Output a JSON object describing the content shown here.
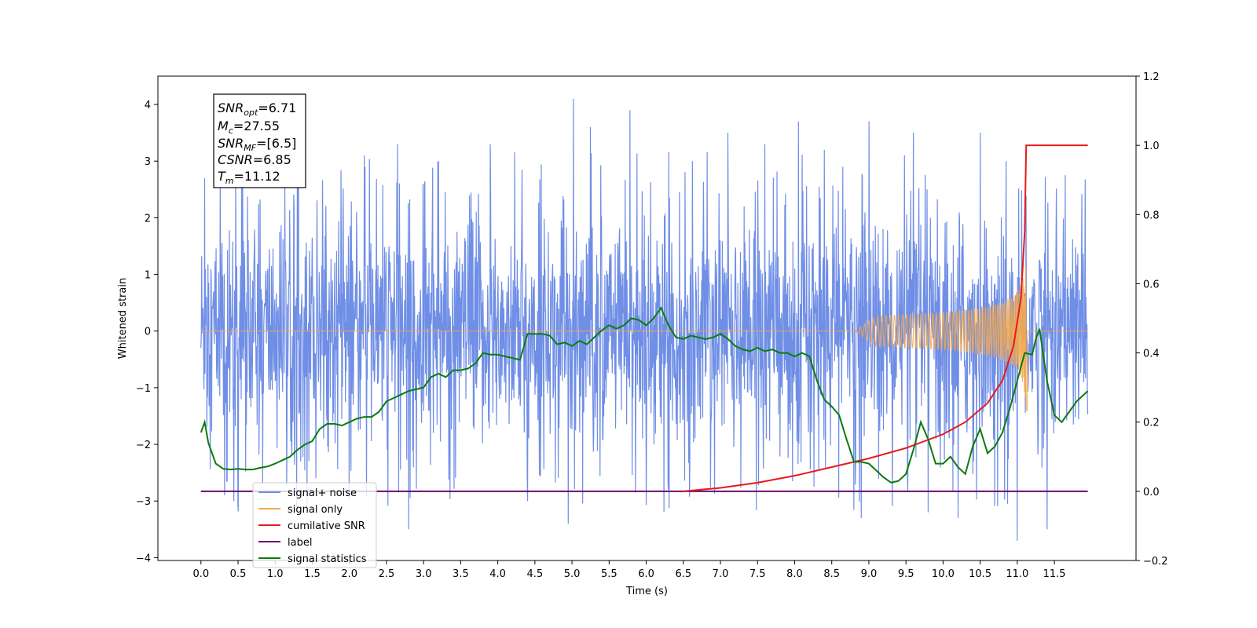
{
  "chart_data": {
    "type": "line",
    "xlabel": "Time (s)",
    "ylabel": "Whitened strain",
    "xlim": [
      -0.58,
      12.6
    ],
    "ylim": [
      -4.05,
      4.5
    ],
    "y2lim": [
      -0.2,
      1.2
    ],
    "grid": false,
    "legend_placement": "lower-left",
    "x_ticks": [
      "0.0",
      "0.5",
      "1.0",
      "1.5",
      "2.0",
      "2.5",
      "3.0",
      "3.5",
      "4.0",
      "4.5",
      "5.0",
      "5.5",
      "6.0",
      "6.5",
      "7.0",
      "7.5",
      "8.0",
      "8.5",
      "9.0",
      "9.5",
      "10.0",
      "10.5",
      "11.0",
      "11.5"
    ],
    "y_ticks": [
      "−4",
      "−3",
      "−2",
      "−1",
      "0",
      "1",
      "2",
      "3",
      "4"
    ],
    "y2_ticks": [
      "−0.2",
      "0.0",
      "0.2",
      "0.4",
      "0.6",
      "0.8",
      "1.0",
      "1.2"
    ],
    "annotation": {
      "lines": [
        {
          "sym": "SNR",
          "sub": "opt",
          "val": "=6.71"
        },
        {
          "sym": "M",
          "sub": "c",
          "val": "=27.55"
        },
        {
          "sym": "SNR",
          "sub": "MF",
          "val": "=[6.5]"
        },
        {
          "sym": "CSNR",
          "sub": "",
          "val": "=6.85"
        },
        {
          "sym": "T",
          "sub": "m",
          "val": "=11.12"
        }
      ]
    },
    "series": [
      {
        "name": "signal+ noise",
        "color": "#6f8ee6",
        "axis": "left",
        "description_values": "noise band roughly between -2.4 and 2.4 with spikes to about 4.1 and -3.7",
        "spike_x": [
          0.05,
          0.32,
          0.55,
          0.83,
          1.3,
          1.55,
          2.2,
          2.65,
          2.8,
          3.2,
          3.9,
          4.4,
          4.95,
          5.02,
          5.25,
          5.78,
          6.3,
          6.62,
          7.1,
          7.6,
          8.05,
          8.4,
          8.9,
          9.0,
          9.6,
          9.8,
          10.2,
          10.5,
          10.85,
          11.0,
          11.4
        ],
        "spike_y": [
          2.7,
          -2.9,
          2.8,
          -2.7,
          3.4,
          -2.6,
          3.1,
          3.3,
          -3.5,
          3.0,
          3.3,
          -3.0,
          -3.4,
          4.1,
          3.6,
          3.9,
          -2.8,
          3.0,
          3.5,
          3.3,
          3.7,
          3.2,
          -3.3,
          3.7,
          3.5,
          -3.2,
          -3.3,
          3.5,
          3.0,
          -3.7,
          -3.5
        ]
      },
      {
        "name": "signal only",
        "color": "#f5a94a",
        "axis": "left",
        "chirp_start": 8.8,
        "chirp_end": 11.12,
        "peak_amp": 1.4
      },
      {
        "name": "cumilative SNR",
        "color": "#e8191c",
        "axis": "right",
        "x": [
          6.5,
          7.0,
          7.5,
          8.0,
          8.5,
          9.0,
          9.5,
          10.0,
          10.3,
          10.6,
          10.8,
          10.95,
          11.05,
          11.1,
          11.12,
          11.15,
          11.95
        ],
        "y": [
          0.0,
          0.01,
          0.025,
          0.045,
          0.07,
          0.095,
          0.125,
          0.165,
          0.2,
          0.255,
          0.32,
          0.42,
          0.56,
          0.75,
          1.0,
          1.0,
          1.0
        ]
      },
      {
        "name": "label",
        "color": "#6a0d6a",
        "axis": "right",
        "x": [
          0.0,
          11.95
        ],
        "y": [
          0.0,
          0.0
        ]
      },
      {
        "name": "signal statistics",
        "color": "#0d7a0d",
        "axis": "right",
        "x": [
          0.0,
          0.05,
          0.1,
          0.2,
          0.3,
          0.4,
          0.5,
          0.6,
          0.7,
          0.8,
          0.9,
          1.0,
          1.1,
          1.2,
          1.3,
          1.4,
          1.5,
          1.6,
          1.7,
          1.8,
          1.9,
          2.0,
          2.1,
          2.2,
          2.3,
          2.4,
          2.5,
          2.6,
          2.7,
          2.8,
          2.9,
          3.0,
          3.1,
          3.2,
          3.3,
          3.4,
          3.5,
          3.6,
          3.7,
          3.8,
          3.9,
          4.0,
          4.1,
          4.2,
          4.3,
          4.4,
          4.5,
          4.6,
          4.7,
          4.8,
          4.9,
          5.0,
          5.1,
          5.2,
          5.3,
          5.4,
          5.5,
          5.6,
          5.7,
          5.8,
          5.9,
          6.0,
          6.1,
          6.2,
          6.3,
          6.4,
          6.5,
          6.6,
          6.7,
          6.8,
          6.9,
          7.0,
          7.1,
          7.2,
          7.3,
          7.4,
          7.5,
          7.6,
          7.7,
          7.8,
          7.9,
          8.0,
          8.1,
          8.2,
          8.3,
          8.4,
          8.5,
          8.6,
          8.7,
          8.8,
          8.9,
          9.0,
          9.1,
          9.2,
          9.3,
          9.4,
          9.5,
          9.6,
          9.7,
          9.8,
          9.9,
          10.0,
          10.1,
          10.2,
          10.3,
          10.4,
          10.5,
          10.6,
          10.7,
          10.8,
          10.9,
          11.0,
          11.1,
          11.2,
          11.25,
          11.3,
          11.4,
          11.5,
          11.6,
          11.7,
          11.8,
          11.9,
          11.95
        ],
        "y": [
          0.17,
          0.2,
          0.14,
          0.08,
          0.065,
          0.063,
          0.065,
          0.063,
          0.063,
          0.068,
          0.072,
          0.08,
          0.09,
          0.1,
          0.12,
          0.135,
          0.145,
          0.18,
          0.195,
          0.195,
          0.19,
          0.2,
          0.21,
          0.215,
          0.215,
          0.23,
          0.26,
          0.27,
          0.28,
          0.29,
          0.295,
          0.3,
          0.33,
          0.34,
          0.33,
          0.35,
          0.35,
          0.355,
          0.37,
          0.4,
          0.395,
          0.395,
          0.39,
          0.385,
          0.38,
          0.455,
          0.455,
          0.455,
          0.45,
          0.425,
          0.43,
          0.42,
          0.435,
          0.425,
          0.445,
          0.465,
          0.48,
          0.47,
          0.48,
          0.5,
          0.495,
          0.48,
          0.5,
          0.53,
          0.48,
          0.445,
          0.44,
          0.45,
          0.445,
          0.44,
          0.445,
          0.455,
          0.44,
          0.42,
          0.41,
          0.405,
          0.415,
          0.405,
          0.41,
          0.4,
          0.4,
          0.39,
          0.4,
          0.39,
          0.32,
          0.265,
          0.245,
          0.22,
          0.15,
          0.085,
          0.085,
          0.08,
          0.06,
          0.04,
          0.025,
          0.03,
          0.05,
          0.12,
          0.2,
          0.15,
          0.08,
          0.08,
          0.1,
          0.07,
          0.05,
          0.13,
          0.18,
          0.11,
          0.13,
          0.17,
          0.24,
          0.32,
          0.4,
          0.395,
          0.44,
          0.47,
          0.32,
          0.22,
          0.2,
          0.23,
          0.26,
          0.28,
          0.29
        ]
      }
    ]
  }
}
